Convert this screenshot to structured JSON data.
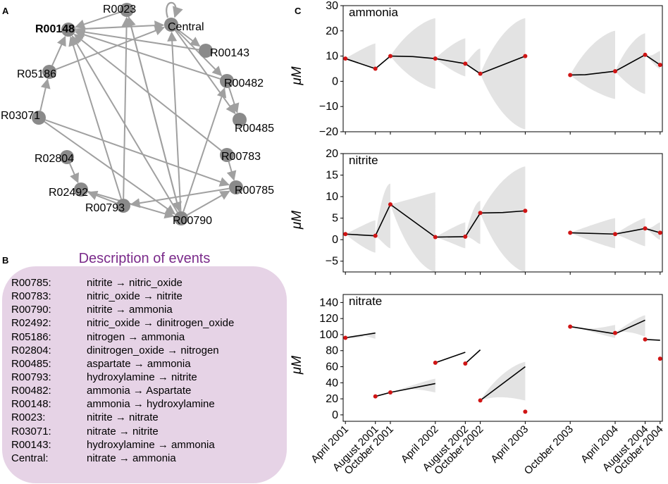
{
  "panels": {
    "a": "A",
    "b": "B",
    "c": "C"
  },
  "network": {
    "nodes": [
      {
        "id": "R0023",
        "label": "R0023",
        "bold": false
      },
      {
        "id": "Central",
        "label": "Central",
        "bold": false
      },
      {
        "id": "R00143",
        "label": "R00143",
        "bold": false
      },
      {
        "id": "R00482",
        "label": "R00482",
        "bold": false
      },
      {
        "id": "R00485",
        "label": "R00485",
        "bold": false
      },
      {
        "id": "R00783",
        "label": "R00783",
        "bold": false
      },
      {
        "id": "R00785",
        "label": "R00785",
        "bold": false
      },
      {
        "id": "R00790",
        "label": "R00790",
        "bold": false
      },
      {
        "id": "R00793",
        "label": "R00793",
        "bold": false
      },
      {
        "id": "R02492",
        "label": "R02492",
        "bold": false
      },
      {
        "id": "R02804",
        "label": "R02804",
        "bold": false
      },
      {
        "id": "R03071",
        "label": "R03071",
        "bold": false
      },
      {
        "id": "R05186",
        "label": "R05186",
        "bold": false
      },
      {
        "id": "R00148",
        "label": "R00148",
        "bold": true
      }
    ],
    "edges": [
      [
        "R03071",
        "R05186"
      ],
      [
        "R05186",
        "R00148"
      ],
      [
        "R05186",
        "Central"
      ],
      [
        "R00148",
        "Central"
      ],
      [
        "R0023",
        "R00148"
      ],
      [
        "Central",
        "R00143"
      ],
      [
        "Central",
        "R00482"
      ],
      [
        "Central",
        "R00485"
      ],
      [
        "Central",
        "Central"
      ],
      [
        "R00143",
        "R00148"
      ],
      [
        "R00482",
        "R00148"
      ],
      [
        "R00482",
        "R00485"
      ],
      [
        "R00783",
        "R00785"
      ],
      [
        "R03071",
        "R00785"
      ],
      [
        "R03071",
        "R00790"
      ],
      [
        "R02804",
        "R02492"
      ],
      [
        "R00793",
        "R02492"
      ],
      [
        "R00793",
        "R0023"
      ],
      [
        "R00793",
        "R00148"
      ],
      [
        "R00790",
        "R0023"
      ],
      [
        "R00790",
        "R00148"
      ],
      [
        "R00790",
        "R00482"
      ],
      [
        "R00790",
        "Central"
      ],
      [
        "R02492",
        "R00790"
      ],
      [
        "R00790",
        "R00785"
      ],
      [
        "R00785",
        "R00793"
      ],
      [
        "R00783",
        "R00148"
      ],
      [
        "R0023",
        "R00790"
      ]
    ]
  },
  "description": {
    "title": "Description of events",
    "events": [
      {
        "code": "R00785:",
        "reaction": "nitrite → nitric_oxide"
      },
      {
        "code": "R00783:",
        "reaction": "nitric_oxide → nitrite"
      },
      {
        "code": "R00790:",
        "reaction": "nitrite → ammonia"
      },
      {
        "code": "R02492:",
        "reaction": "nitric_oxide → dinitrogen_oxide"
      },
      {
        "code": "R05186:",
        "reaction": "nitrogen → ammonia"
      },
      {
        "code": "R02804:",
        "reaction": "dinitrogen_oxide → nitrogen"
      },
      {
        "code": "R00485:",
        "reaction": "aspartate → ammonia"
      },
      {
        "code": "R00793:",
        "reaction": "hydroxylamine → nitrite"
      },
      {
        "code": "R00482:",
        "reaction": "ammonia → Aspartate"
      },
      {
        "code": "R00148:",
        "reaction": "ammonia → hydroxylamine"
      },
      {
        "code": "R0023:",
        "reaction": "nitrite → nitrate"
      },
      {
        "code": "R03071:",
        "reaction": "nitrate → nitrite"
      },
      {
        "code": "R00143:",
        "reaction": "hydroxylamine → ammonia"
      },
      {
        "code": "Central:",
        "reaction": "nitrate → ammonia"
      }
    ]
  },
  "chart_data": [
    {
      "type": "line",
      "title": "ammonia",
      "ylabel": "μM",
      "ylim": [
        -20,
        30
      ],
      "yticks": [
        -20,
        -10,
        0,
        10,
        20,
        30
      ],
      "tick_labels": [
        "−20",
        "−10",
        "0",
        "10",
        "20",
        "30"
      ],
      "observations": [
        {
          "x": 0,
          "y": 9
        },
        {
          "x": 4,
          "y": 5
        },
        {
          "x": 6,
          "y": 10
        },
        {
          "x": 12,
          "y": 9
        },
        {
          "x": 16,
          "y": 7
        },
        {
          "x": 18,
          "y": 3
        },
        {
          "x": 24,
          "y": 10
        },
        {
          "x": 30,
          "y": 2.5
        },
        {
          "x": 36,
          "y": 4
        },
        {
          "x": 40,
          "y": 10.5
        },
        {
          "x": 42,
          "y": 6.5
        }
      ],
      "segments": [
        [
          [
            0,
            9
          ],
          [
            4,
            5
          ]
        ],
        [
          [
            4,
            5
          ],
          [
            6,
            10
          ]
        ],
        [
          [
            6,
            10
          ],
          [
            9,
            9.8
          ],
          [
            12,
            9
          ]
        ],
        [
          [
            12,
            9
          ],
          [
            16,
            7
          ]
        ],
        [
          [
            16,
            7
          ],
          [
            18,
            3
          ]
        ],
        [
          [
            18,
            3
          ],
          [
            24,
            10
          ]
        ],
        [
          [
            30,
            2.5
          ],
          [
            32,
            2.6
          ],
          [
            36,
            4
          ]
        ],
        [
          [
            36,
            4
          ],
          [
            40,
            10.5
          ]
        ],
        [
          [
            40,
            10.5
          ],
          [
            42,
            6.5
          ]
        ]
      ],
      "cones": [
        {
          "x0": 0,
          "x1": 4,
          "top": 15,
          "bottom": 5
        },
        {
          "x0": 6,
          "x1": 12,
          "top": 25,
          "bottom": -3
        },
        {
          "x0": 12,
          "x1": 16,
          "top": 17,
          "bottom": 2
        },
        {
          "x0": 16,
          "x1": 18,
          "top": 13,
          "bottom": 3
        },
        {
          "x0": 18,
          "x1": 24,
          "top": 25,
          "bottom": -19
        },
        {
          "x0": 30,
          "x1": 36,
          "top": 20,
          "bottom": -7
        },
        {
          "x0": 36,
          "x1": 40,
          "top": 19,
          "bottom": -5
        },
        {
          "x0": 40,
          "x1": 42,
          "top": 12,
          "bottom": 5
        }
      ]
    },
    {
      "type": "line",
      "title": "nitrite",
      "ylabel": "μM",
      "ylim": [
        -7.5,
        20
      ],
      "yticks": [
        -5,
        0,
        5,
        10,
        15,
        20
      ],
      "tick_labels": [
        "−5",
        "0",
        "5",
        "10",
        "15",
        "20"
      ],
      "observations": [
        {
          "x": 0,
          "y": 1.3
        },
        {
          "x": 4,
          "y": 0.9
        },
        {
          "x": 6,
          "y": 8.2
        },
        {
          "x": 12,
          "y": 0.6
        },
        {
          "x": 16,
          "y": 0.7
        },
        {
          "x": 18,
          "y": 6.2
        },
        {
          "x": 24,
          "y": 6.7
        },
        {
          "x": 30,
          "y": 1.6
        },
        {
          "x": 36,
          "y": 1.3
        },
        {
          "x": 40,
          "y": 2.6
        },
        {
          "x": 42,
          "y": 1.6
        }
      ],
      "segments": [
        [
          [
            0,
            1.3
          ],
          [
            4,
            0.9
          ]
        ],
        [
          [
            4,
            0.9
          ],
          [
            6,
            8.2
          ]
        ],
        [
          [
            6,
            8.2
          ],
          [
            12,
            0.6
          ]
        ],
        [
          [
            12,
            0.6
          ],
          [
            16,
            0.7
          ]
        ],
        [
          [
            16,
            0.7
          ],
          [
            18,
            6.2
          ]
        ],
        [
          [
            18,
            6.2
          ],
          [
            21,
            6.3
          ],
          [
            24,
            6.7
          ]
        ],
        [
          [
            30,
            1.6
          ],
          [
            36,
            1.3
          ]
        ],
        [
          [
            36,
            1.3
          ],
          [
            40,
            2.6
          ]
        ],
        [
          [
            40,
            2.6
          ],
          [
            42,
            1.6
          ]
        ]
      ],
      "cones": [
        {
          "x0": 0,
          "x1": 4,
          "top": 4.5,
          "bottom": -3
        },
        {
          "x0": 4,
          "x1": 6,
          "top": 13,
          "bottom": -2
        },
        {
          "x0": 6,
          "x1": 12,
          "top": 11,
          "bottom": -7.5
        },
        {
          "x0": 12,
          "x1": 16,
          "top": 4,
          "bottom": -2
        },
        {
          "x0": 16,
          "x1": 18,
          "top": 9,
          "bottom": -1
        },
        {
          "x0": 18,
          "x1": 24,
          "top": 17,
          "bottom": -7.5
        },
        {
          "x0": 30,
          "x1": 36,
          "top": 5,
          "bottom": -2
        },
        {
          "x0": 36,
          "x1": 40,
          "top": 5,
          "bottom": -1.5
        },
        {
          "x0": 40,
          "x1": 42,
          "top": 4,
          "bottom": 0
        }
      ]
    },
    {
      "type": "line",
      "title": "nitrate",
      "ylabel": "μM",
      "ylim": [
        -8,
        150
      ],
      "yticks": [
        0,
        20,
        40,
        60,
        80,
        100,
        120,
        140
      ],
      "tick_labels": [
        "0",
        "20",
        "40",
        "60",
        "80",
        "100",
        "120",
        "140"
      ],
      "observations": [
        {
          "x": 0,
          "y": 96
        },
        {
          "x": 4,
          "y": 23
        },
        {
          "x": 6,
          "y": 28
        },
        {
          "x": 12,
          "y": 65
        },
        {
          "x": 16,
          "y": 64
        },
        {
          "x": 18,
          "y": 18
        },
        {
          "x": 24,
          "y": 4
        },
        {
          "x": 30,
          "y": 110
        },
        {
          "x": 36,
          "y": 102
        },
        {
          "x": 40,
          "y": 94
        },
        {
          "x": 42,
          "y": 70
        }
      ],
      "segments": [
        [
          [
            0,
            96
          ],
          [
            4,
            102
          ]
        ],
        [
          [
            4,
            23
          ],
          [
            6,
            28
          ]
        ],
        [
          [
            6,
            28
          ],
          [
            12,
            39
          ]
        ],
        [
          [
            12,
            65
          ],
          [
            16,
            78
          ]
        ],
        [
          [
            16,
            64
          ],
          [
            18,
            81
          ]
        ],
        [
          [
            18,
            18
          ],
          [
            24,
            60
          ]
        ],
        [
          [
            30,
            110
          ],
          [
            36,
            101
          ]
        ],
        [
          [
            36,
            101
          ],
          [
            40,
            118
          ]
        ],
        [
          [
            40,
            94
          ],
          [
            42,
            93
          ]
        ]
      ],
      "cones": [
        {
          "x0": 0,
          "x1": 4,
          "top": 102,
          "bottom": 95
        },
        {
          "x0": 6,
          "x1": 12,
          "top": 45,
          "bottom": 28
        },
        {
          "x0": 18,
          "x1": 24,
          "top": 66,
          "bottom": 18
        },
        {
          "x0": 30,
          "x1": 36,
          "top": 112,
          "bottom": 96
        },
        {
          "x0": 36,
          "x1": 40,
          "top": 124,
          "bottom": 98
        }
      ]
    }
  ],
  "x_axis": {
    "ticks": [
      {
        "x": 0,
        "label": "April 2001"
      },
      {
        "x": 4,
        "label": "August 2001"
      },
      {
        "x": 6,
        "label": "October 2001"
      },
      {
        "x": 12,
        "label": "April 2002"
      },
      {
        "x": 16,
        "label": "August 2002"
      },
      {
        "x": 18,
        "label": "October 2002"
      },
      {
        "x": 24,
        "label": "April 2003"
      },
      {
        "x": 30,
        "label": "October 2003"
      },
      {
        "x": 36,
        "label": "April 2004"
      },
      {
        "x": 40,
        "label": "August 2004"
      },
      {
        "x": 42,
        "label": "October 2004"
      }
    ],
    "xlim": [
      -0.3,
      42.3
    ]
  },
  "colors": {
    "point": "#d01515",
    "line": "#000000",
    "cone": "#d9d9d9",
    "node": "#8a8a8a",
    "edge": "#a0a0a0",
    "title": "#7a2a8a",
    "box": "#e6d3e6"
  }
}
